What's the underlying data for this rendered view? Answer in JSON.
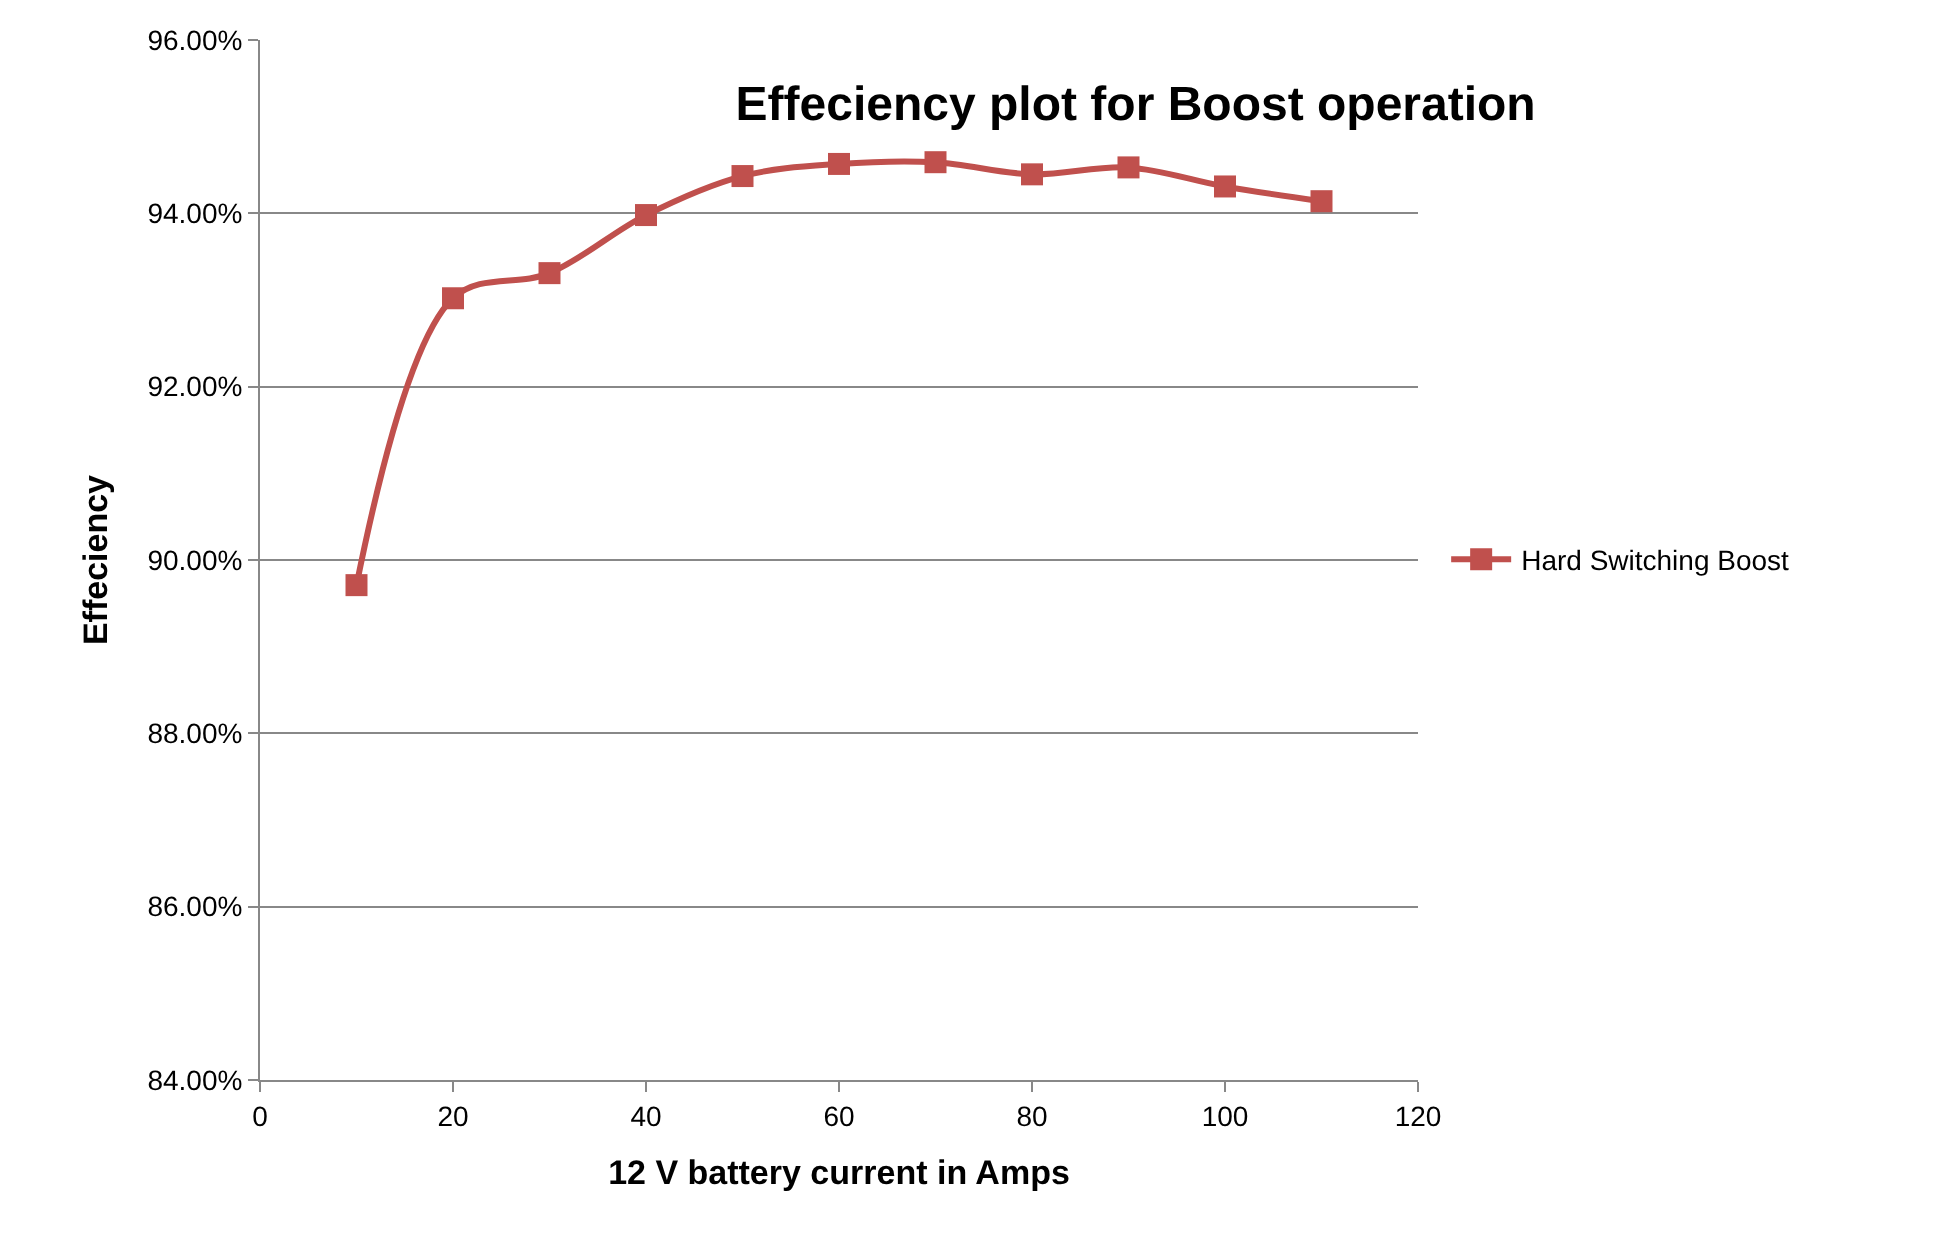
{
  "chart_data": {
    "type": "line",
    "title": "Effeciency plot for Boost operation",
    "xlabel": "12 V battery current in Amps",
    "ylabel": "Effeciency",
    "x": [
      10,
      20,
      30,
      40,
      50,
      60,
      70,
      80,
      90,
      100,
      110
    ],
    "series": [
      {
        "name": "Hard Switching Boost",
        "color": "#c0504d",
        "values": [
          89.71,
          93.02,
          93.31,
          93.98,
          94.43,
          94.57,
          94.59,
          94.45,
          94.53,
          94.31,
          94.14
        ]
      }
    ],
    "xlim": [
      0,
      120
    ],
    "xticks": [
      0,
      20,
      40,
      60,
      80,
      100,
      120
    ],
    "ylim": [
      84,
      96
    ],
    "yticks": [
      {
        "value": 84,
        "label": "84.00%"
      },
      {
        "value": 86,
        "label": "86.00%"
      },
      {
        "value": 88,
        "label": "88.00%"
      },
      {
        "value": 90,
        "label": "90.00%"
      },
      {
        "value": 92,
        "label": "92.00%"
      },
      {
        "value": 94,
        "label": "94.00%"
      },
      {
        "value": 96,
        "label": "96.00%"
      }
    ],
    "grid": "y",
    "legend": "right",
    "marker": "square",
    "line_style": "solid"
  }
}
